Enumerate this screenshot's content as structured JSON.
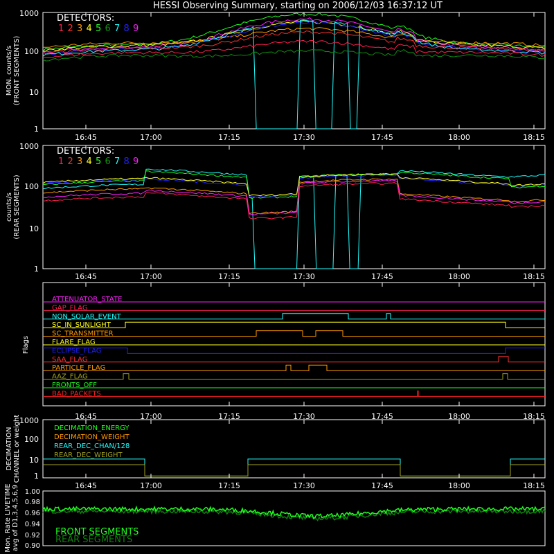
{
  "title": "HESSI Observing Summary, starting on 2006/12/03 16:37:12 UT",
  "time_ticks": [
    "16:45",
    "17:00",
    "17:15",
    "17:30",
    "17:45",
    "18:00",
    "18:15"
  ],
  "detector_colors": [
    "#ff2050",
    "#ff3030",
    "#ff9900",
    "#ffff20",
    "#20ff20",
    "#109010",
    "#20ffff",
    "#2020ff",
    "#ff20ff"
  ],
  "chart_data": [
    {
      "type": "line",
      "panel": "front",
      "ylabel": [
        "MON. counts/s",
        "(FRONT SEGMENTS)"
      ],
      "yscale": "log",
      "ylim": [
        1,
        1000
      ],
      "yticks": [
        "1",
        "10",
        "100",
        "1000"
      ],
      "legend_title": "DETECTORS:",
      "legend_items": [
        "1",
        "2",
        "3",
        "4",
        "5",
        "6",
        "7",
        "8",
        "9"
      ],
      "x_range_min": [
        0,
        100
      ],
      "series": [
        {
          "color": "#20ff20",
          "peak": 950,
          "base": 110
        },
        {
          "color": "#ff20ff",
          "peak": 700,
          "base": 95
        },
        {
          "color": "#ffff20",
          "peak": 600,
          "base": 105
        },
        {
          "color": "#ff9900",
          "peak": 420,
          "base": 125
        },
        {
          "color": "#2020ff",
          "peak": 560,
          "base": 85
        },
        {
          "color": "#20ffff",
          "peak": 620,
          "base": 80
        },
        {
          "color": "#ff3030",
          "peak": 340,
          "base": 90
        },
        {
          "color": "#ff2050",
          "peak": 200,
          "base": 70
        },
        {
          "color": "#109010",
          "peak": 120,
          "base": 60
        }
      ]
    },
    {
      "type": "line",
      "panel": "rear",
      "ylabel": [
        "counts/s",
        "(REAR SEGMENTS)"
      ],
      "yscale": "log",
      "ylim": [
        1,
        1000
      ],
      "yticks": [
        "1",
        "10",
        "100",
        "1000"
      ],
      "legend_title": "DETECTORS:",
      "legend_items": [
        "1",
        "2",
        "3",
        "4",
        "5",
        "6",
        "7",
        "8",
        "9"
      ],
      "x_range_min": [
        0,
        100
      ]
    },
    {
      "type": "line",
      "panel": "flags",
      "ylabel": [
        "Flags"
      ],
      "flags": [
        {
          "label": "ATTENUATOR_STATE",
          "color": "#ff20ff"
        },
        {
          "label": "GAP_FLAG",
          "color": "#ff2050"
        },
        {
          "label": "NON_SOLAR_EVENT",
          "color": "#20ffff"
        },
        {
          "label": "SC_IN_SUNLIGHT",
          "color": "#ffff20"
        },
        {
          "label": "SC_TRANSMITTER",
          "color": "#ff9900"
        },
        {
          "label": "FLARE_FLAG",
          "color": "#ffff20"
        },
        {
          "label": "ECLIPSE_FLAG",
          "color": "#2020ff"
        },
        {
          "label": "SAA_FLAG",
          "color": "#ff3030"
        },
        {
          "label": "PARTICLE_FLAG",
          "color": "#ff9900"
        },
        {
          "label": "AAZ_FLAG",
          "color": "#a0a020"
        },
        {
          "label": "FRONTS_OFF",
          "color": "#20ff20"
        },
        {
          "label": "BAD_PACKETS",
          "color": "#ff2020"
        }
      ]
    },
    {
      "type": "line",
      "panel": "decimation",
      "ylabel": [
        "DECIMATION",
        "CHANNEL or weight"
      ],
      "yscale": "log",
      "yticks": [
        "1",
        "10",
        "100",
        "1000"
      ],
      "legend_items": [
        {
          "label": "DECIMATION_ENERGY",
          "color": "#20ff20"
        },
        {
          "label": "DECIMATION_WEIGHT",
          "color": "#ff9900"
        },
        {
          "label": "REAR_DEC_CHAN/128",
          "color": "#20ffff"
        },
        {
          "label": "REAR_DEC_WEIGHT",
          "color": "#a0a020"
        }
      ]
    },
    {
      "type": "line",
      "panel": "livetime",
      "ylabel": [
        "Mon. Rate LIVETIME",
        "avg of D1,3,4,5,6,9"
      ],
      "ylim": [
        0.9,
        1.0
      ],
      "yticks": [
        "0.90",
        "0.92",
        "0.94",
        "0.96",
        "0.98",
        "1.00"
      ],
      "legend_items": [
        {
          "label": "FRONT SEGMENTS",
          "color": "#20ff20"
        },
        {
          "label": "REAR SEGMENTS",
          "color": "#108010"
        }
      ]
    }
  ]
}
